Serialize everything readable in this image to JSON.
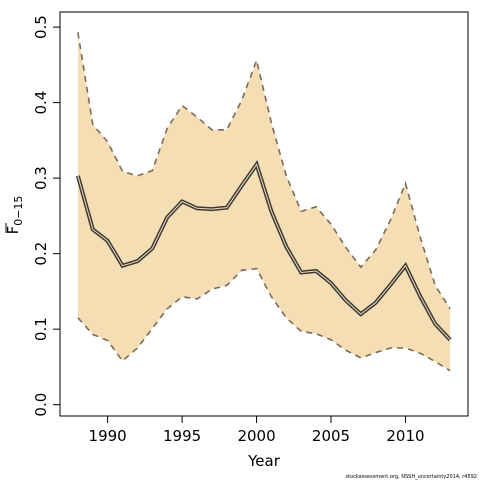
{
  "chart_data": {
    "type": "line",
    "xlabel": "Year",
    "ylabel": {
      "main": "F",
      "sub": "0−15"
    },
    "xlim": [
      1986.8,
      2014.2
    ],
    "ylim": [
      -0.015,
      0.52
    ],
    "x_ticks": [
      1990,
      1995,
      2000,
      2005,
      2010
    ],
    "y_ticks": [
      0.0,
      0.1,
      0.2,
      0.3,
      0.4,
      0.5
    ],
    "y_tick_labels": [
      "0.0",
      "0.1",
      "0.2",
      "0.3",
      "0.4",
      "0.5"
    ],
    "grid": false,
    "x": [
      1988,
      1989,
      1990,
      1991,
      1992,
      1993,
      1994,
      1995,
      1996,
      1997,
      1998,
      1999,
      2000,
      2001,
      2002,
      2003,
      2004,
      2005,
      2006,
      2007,
      2008,
      2009,
      2010,
      2011,
      2012,
      2013
    ],
    "series": [
      {
        "role": "estimate",
        "color": "#3a3a3a",
        "values": [
          0.303,
          0.232,
          0.217,
          0.184,
          0.19,
          0.207,
          0.248,
          0.269,
          0.26,
          0.259,
          0.261,
          0.29,
          0.318,
          0.256,
          0.209,
          0.175,
          0.177,
          0.161,
          0.138,
          0.12,
          0.135,
          0.159,
          0.184,
          0.143,
          0.107,
          0.086
        ]
      },
      {
        "role": "upper",
        "color": "#7a6a5a",
        "values": [
          0.493,
          0.371,
          0.348,
          0.309,
          0.303,
          0.31,
          0.366,
          0.396,
          0.381,
          0.364,
          0.364,
          0.403,
          0.456,
          0.373,
          0.303,
          0.256,
          0.262,
          0.239,
          0.208,
          0.182,
          0.205,
          0.245,
          0.293,
          0.221,
          0.158,
          0.127
        ]
      },
      {
        "role": "lower",
        "color": "#7a6a5a",
        "values": [
          0.115,
          0.093,
          0.085,
          0.058,
          0.075,
          0.101,
          0.127,
          0.143,
          0.14,
          0.153,
          0.158,
          0.178,
          0.18,
          0.143,
          0.115,
          0.097,
          0.094,
          0.086,
          0.072,
          0.062,
          0.069,
          0.075,
          0.075,
          0.068,
          0.057,
          0.045
        ]
      }
    ],
    "band_fill": "#f5deb3",
    "credit": "stockassessment.org, NSSH_uncertainty2014, r4592"
  }
}
